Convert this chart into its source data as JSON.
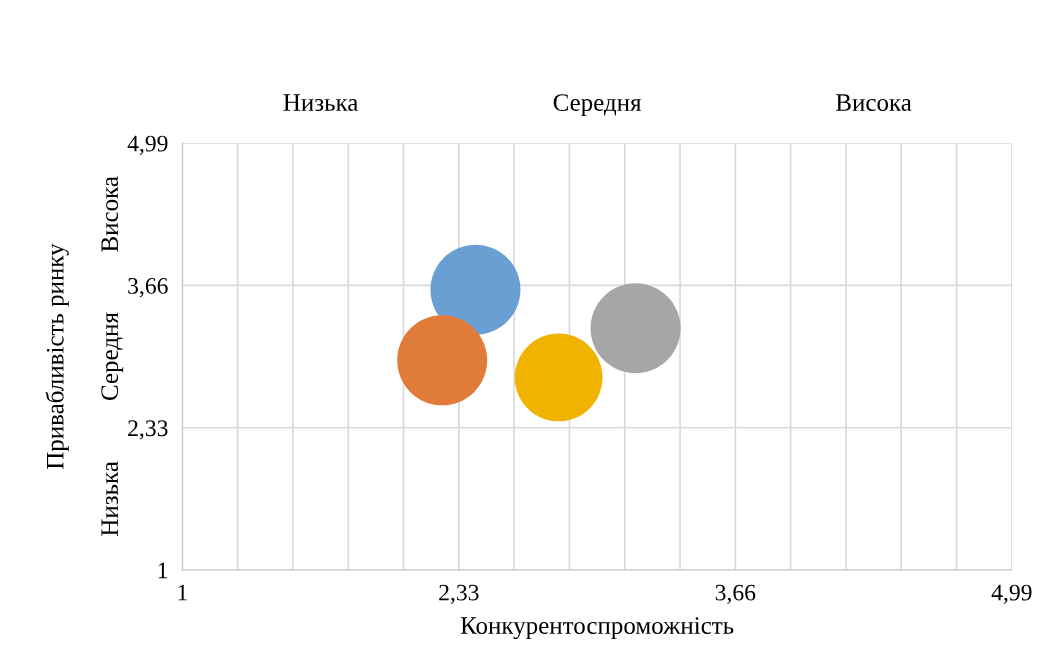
{
  "chart_data": {
    "type": "bubble",
    "xlabel": "Конкурентоспроможність",
    "ylabel": "Привабливість ринку",
    "x": [
      2.41,
      2.25,
      2.81,
      3.18
    ],
    "values": [
      3.62,
      2.96,
      2.8,
      3.26
    ],
    "sizes": [
      1,
      1,
      0.95,
      1
    ],
    "colors": [
      "#6a9fd4",
      "#e07b39",
      "#f0b400",
      "#a6a6a6"
    ],
    "xlim": [
      1,
      4.99
    ],
    "ylim": [
      1,
      4.99
    ],
    "xticks": [
      1,
      {
        "value": 1.266,
        "label": null
      },
      {
        "value": 1.532,
        "label": null
      },
      {
        "value": 1.798,
        "label": null
      },
      {
        "value": 2.064,
        "label": null
      },
      {
        "value": 2.33,
        "label": "2,33"
      },
      {
        "value": 2.596,
        "label": null
      },
      {
        "value": 2.862,
        "label": null
      },
      {
        "value": 3.128,
        "label": null
      },
      {
        "value": 3.394,
        "label": null
      },
      {
        "value": 3.66,
        "label": "3,66"
      },
      {
        "value": 3.926,
        "label": null
      },
      {
        "value": 4.192,
        "label": null
      },
      {
        "value": 4.458,
        "label": null
      },
      {
        "value": 4.724,
        "label": null
      },
      {
        "value": 4.99,
        "label": "4,99"
      }
    ],
    "yticks": [
      1,
      {
        "value": 2.33,
        "label": "2,33"
      },
      {
        "value": 3.66,
        "label": "3,66"
      },
      {
        "value": 4.99,
        "label": "4,99"
      }
    ],
    "grid": true,
    "annotations": [
      "Низька",
      "Середня",
      "Висока",
      "Низька",
      "Середня",
      "Висока"
    ]
  }
}
